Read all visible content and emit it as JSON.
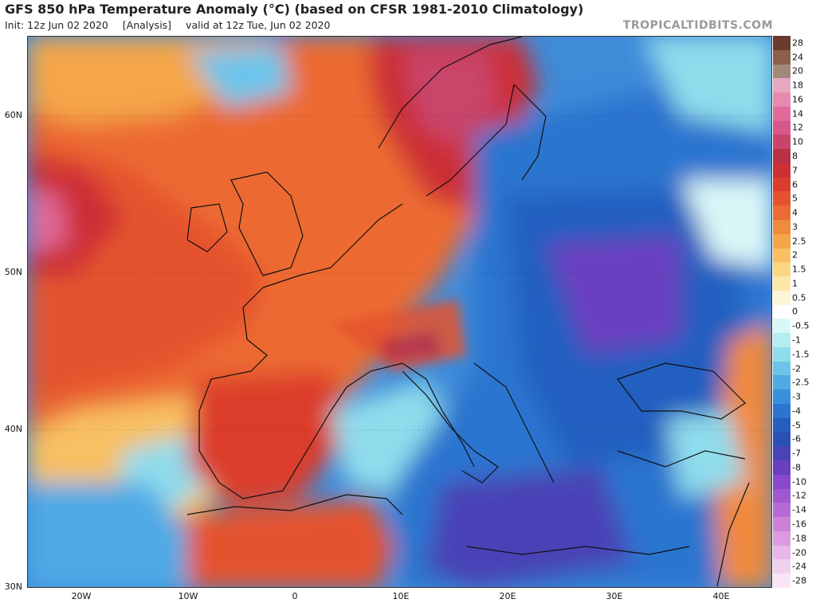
{
  "header": {
    "title": "GFS 850 hPa Temperature Anomaly (°C) (based on CFSR 1981-2010 Climatology)",
    "init": "Init: 12z Jun 02 2020",
    "analysis": "[Analysis]",
    "valid": "valid at 12z Tue, Jun 02 2020",
    "source": "TROPICALTIDBITS.COM"
  },
  "map": {
    "lat_labels": [
      "60N",
      "50N",
      "40N",
      "30N"
    ],
    "lon_labels": [
      "20W",
      "10W",
      "0",
      "10E",
      "20E",
      "30E",
      "40E"
    ]
  },
  "colorbar": [
    {
      "label": "28",
      "color": "#6b3b2e"
    },
    {
      "label": "24",
      "color": "#8c5e4e"
    },
    {
      "label": "20",
      "color": "#a2877b"
    },
    {
      "label": "18",
      "color": "#e8a7c2"
    },
    {
      "label": "16",
      "color": "#e88ab0"
    },
    {
      "label": "14",
      "color": "#e06a99"
    },
    {
      "label": "12",
      "color": "#d8578a"
    },
    {
      "label": "10",
      "color": "#c9446b"
    },
    {
      "label": "8",
      "color": "#b83147"
    },
    {
      "label": "7",
      "color": "#cc2f34"
    },
    {
      "label": "6",
      "color": "#dc3c2c"
    },
    {
      "label": "5",
      "color": "#e5522f"
    },
    {
      "label": "4",
      "color": "#ec6a33"
    },
    {
      "label": "3",
      "color": "#f08a3c"
    },
    {
      "label": "2.5",
      "color": "#f4a649"
    },
    {
      "label": "2",
      "color": "#f8c062"
    },
    {
      "label": "1.5",
      "color": "#fad682"
    },
    {
      "label": "1",
      "color": "#fce8a8"
    },
    {
      "label": "0.5",
      "color": "#fdf5d8"
    },
    {
      "label": "0",
      "color": "#ffffff"
    },
    {
      "label": "-0.5",
      "color": "#d9f7f7"
    },
    {
      "label": "-1",
      "color": "#b2eef0"
    },
    {
      "label": "-1.5",
      "color": "#8fdcec"
    },
    {
      "label": "-2",
      "color": "#6cc4ea"
    },
    {
      "label": "-2.5",
      "color": "#4faae5"
    },
    {
      "label": "-3",
      "color": "#3a8fdc"
    },
    {
      "label": "-4",
      "color": "#2c74cf"
    },
    {
      "label": "-5",
      "color": "#245fc0"
    },
    {
      "label": "-6",
      "color": "#2a4eb2"
    },
    {
      "label": "-7",
      "color": "#4a43b6"
    },
    {
      "label": "-8",
      "color": "#6a3fc0"
    },
    {
      "label": "-10",
      "color": "#8a48cc"
    },
    {
      "label": "-12",
      "color": "#a058d0"
    },
    {
      "label": "-14",
      "color": "#b86ad4"
    },
    {
      "label": "-16",
      "color": "#cc80d8"
    },
    {
      "label": "-18",
      "color": "#dc9ae0"
    },
    {
      "label": "-20",
      "color": "#e8b6e8"
    },
    {
      "label": "-24",
      "color": "#f1cfee"
    },
    {
      "label": "-28",
      "color": "#f8e6f6"
    }
  ]
}
